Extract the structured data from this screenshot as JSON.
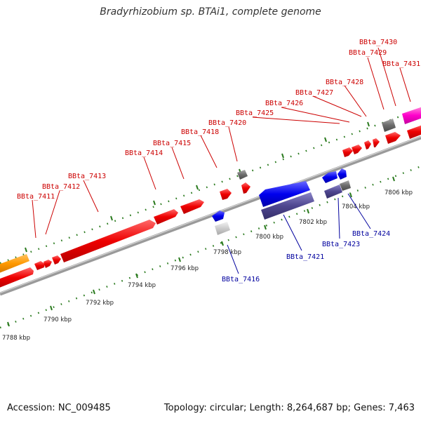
{
  "title": "Bradyrhizobium sp. BTAi1, complete genome",
  "accession": "Accession: NC_009485",
  "summary": "Topology: circular; Length: 8,264,687 bp; Genes: 7,463",
  "colors": {
    "forward_gene": "#ff0000",
    "reverse_gene": "#0000ff",
    "forward_label": "#cc0000",
    "reverse_label": "#00009e",
    "backbone": "#808080",
    "ruler_tick": "#2a7a1e"
  },
  "ruler": {
    "tick_labels": [
      "7788 kbp",
      "7790 kbp",
      "7792 kbp",
      "7794 kbp",
      "7796 kbp",
      "7798 kbp",
      "7800 kbp",
      "7802 kbp",
      "7804 kbp",
      "7806 kbp"
    ]
  },
  "forward_genes": [
    "BBta_7411",
    "BBta_7412",
    "BBta_7413",
    "BBta_7414",
    "BBta_7415",
    "BBta_7418",
    "BBta_7420",
    "BBta_7425",
    "BBta_7426",
    "BBta_7427",
    "BBta_7428",
    "BBta_7429",
    "BBta_7430",
    "BBta_7431"
  ],
  "reverse_genes": [
    "BBta_7416",
    "BBta_7421",
    "BBta_7423",
    "BBta_7424"
  ]
}
